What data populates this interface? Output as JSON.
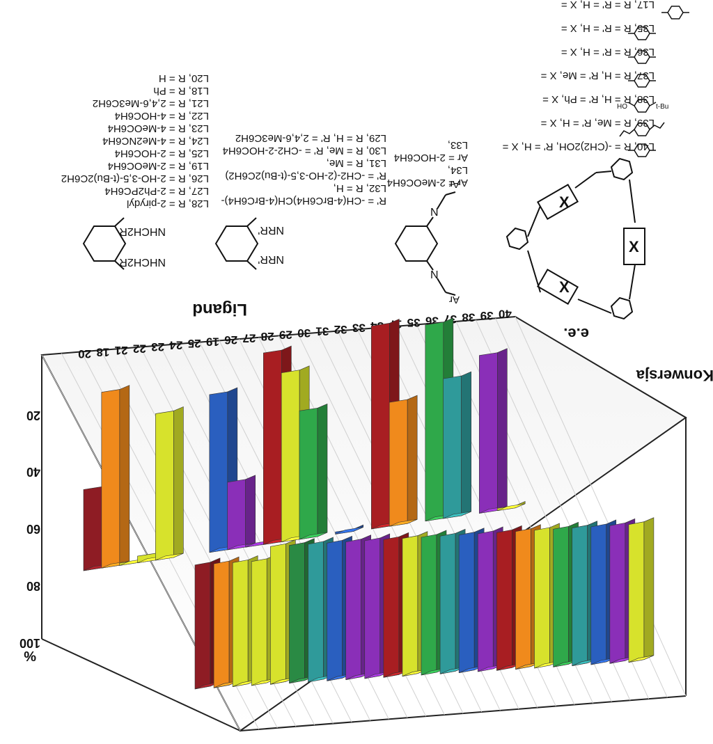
{
  "chart_data": {
    "type": "bar",
    "title": "",
    "xlabel": "Ligand",
    "ylabel": "%",
    "zlabels": [
      "e.e.",
      "Konwersja"
    ],
    "y_ticks": [
      "20",
      "40",
      "60",
      "80",
      "100"
    ],
    "ylim": [
      0,
      100
    ],
    "categories": [
      "20",
      "18",
      "21",
      "22",
      "23",
      "24",
      "25",
      "19",
      "26",
      "27",
      "28",
      "29",
      "30",
      "31",
      "32",
      "33",
      "34",
      "17",
      "35",
      "36",
      "37",
      "38",
      "39",
      "40"
    ],
    "series": [
      {
        "name": "e.e.",
        "values": [
          36,
          78,
          1,
          3,
          65,
          0,
          0,
          70,
          30,
          1,
          85,
          75,
          57,
          0,
          1,
          0,
          90,
          55,
          0,
          87,
          62,
          0,
          70,
          1
        ]
      },
      {
        "name": "Konwersja",
        "values": [
          90,
          90,
          90,
          90,
          100,
          100,
          100,
          100,
          100,
          100,
          100,
          100,
          100,
          100,
          100,
          100,
          100,
          100,
          100,
          100,
          100,
          100,
          100,
          100
        ]
      }
    ],
    "colors": [
      "#8e1c24",
      "#f08a1c",
      "#d7e22c",
      "#d7e22c",
      "#d7e22c",
      "#2a8a44",
      "#2f9a9a",
      "#2a5fbf",
      "#8a2fb8",
      "#8a2fb8",
      "#a81e22",
      "#d7e22c",
      "#2fa84a",
      "#2f9a9a",
      "#2a5fbf",
      "#8a2fb8",
      "#a81e22",
      "#f08a1c",
      "#d7e22c",
      "#2fa84a",
      "#2f9a9a",
      "#2a5fbf",
      "#8a2fb8",
      "#d7e22c"
    ]
  },
  "legend_left": [
    "L28, R = 2-pirydyl",
    "L27, R = 2-Ph2PC6H4",
    "L26, R = 2-HO-3,5-(t-Bu)2C6H2",
    "L19, R = 2-MeOC6H4",
    "L25, R = 2-HOC6H4",
    "L24, R = 4-Me2NC6H4",
    "L23, R = 4-MeOC6H4",
    "L22, R = 4-HOC6H4",
    "L21, R = 2,4,6-Me3C6H2",
    "L18, R = Ph",
    "L20, R = H"
  ],
  "legend_mid": [
    "R' = -CH(4-BrC6H4)CH(4-BrC6H4)-",
    "L32, R = H,",
    "R' = -CH2-(2-HO-3,5-(t-Bu)2C6H2)",
    "L31, R = Me,",
    "L30, R = Me, R' = -CH2-2-HOC6H4",
    "L29, R = H, R' = 2,4,6-Me3C6H2"
  ],
  "legend_right": [
    "Ar = 2-MeOC6H4",
    "L34,",
    "Ar = 2-HOC6H4",
    "L33,"
  ],
  "legend_top": [
    "L40, R = -(CH2)2OH, R' = H, X =",
    "L39, R = Me, R' = H, X =",
    "L38, R = H, R' = Ph, X =",
    "L37, R = H, R' = Me, X =",
    "L36, R = R' = H, X =",
    "L35, R = R' = H, X =",
    "L17, R = R' = H, X ="
  ],
  "structures": {
    "s1_top": "NHCH2R",
    "s1_bottom": "NHCH2R",
    "s2_top": "NRR'",
    "s2_bottom": "NRR'",
    "s3_top": "Ar",
    "s3_bottom": "Ar",
    "s3_n": "N",
    "macro_x": "X",
    "tbu": "t-Bu",
    "ho": "HO"
  }
}
